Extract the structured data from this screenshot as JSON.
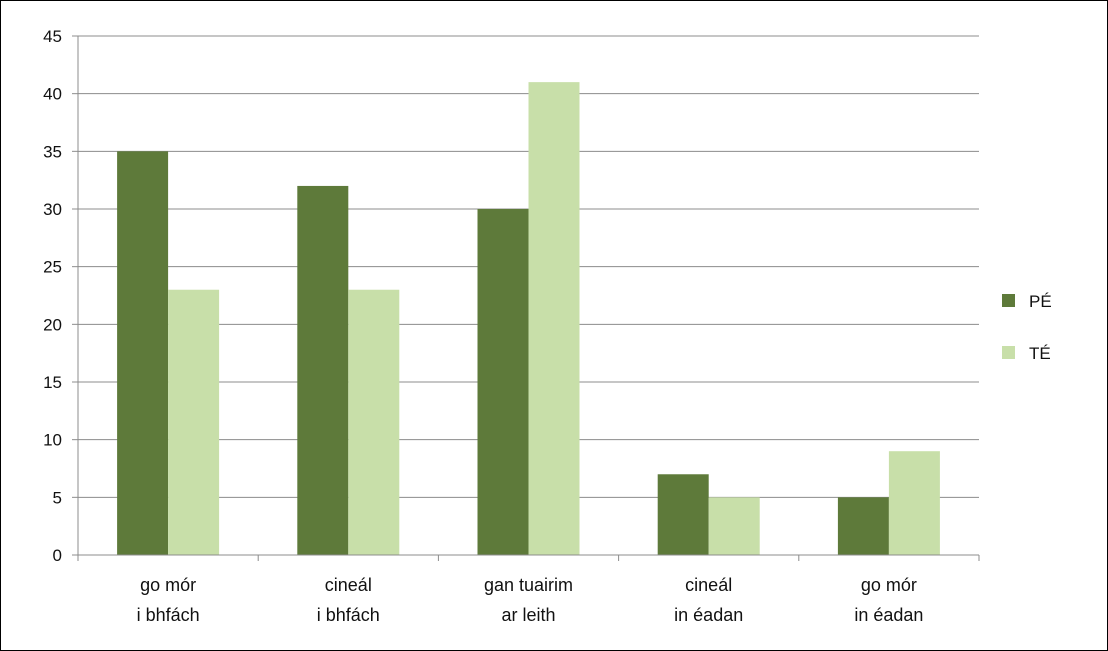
{
  "chart_data": {
    "type": "bar",
    "categories": [
      [
        "go mór",
        "i bhfách"
      ],
      [
        "cineál",
        "i bhfách"
      ],
      [
        "gan tuairim",
        "ar leith"
      ],
      [
        "cineál",
        "in éadan"
      ],
      [
        "go mór",
        "in éadan"
      ]
    ],
    "series": [
      {
        "name": "PÉ",
        "color": "#5e7a3a",
        "values": [
          35,
          32,
          30,
          7,
          5
        ]
      },
      {
        "name": "TÉ",
        "color": "#c8dfa9",
        "values": [
          23,
          23,
          41,
          5,
          9
        ]
      }
    ],
    "ylim": [
      0,
      45
    ],
    "yticks": [
      0,
      5,
      10,
      15,
      20,
      25,
      30,
      35,
      40,
      45
    ],
    "grid": true,
    "legend_position": "right",
    "title": "",
    "xlabel": "",
    "ylabel": ""
  }
}
